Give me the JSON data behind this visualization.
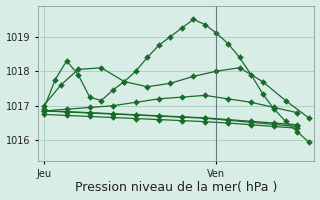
{
  "background_color": "#d8ede5",
  "grid_color": "#a8ccbc",
  "line_color": "#1a6b2a",
  "xlabel": "Pression niveau de la mer( hPa )",
  "xlabel_fontsize": 9,
  "xtick_labels": [
    "Jeu",
    "Ven"
  ],
  "xtick_positions": [
    0,
    30
  ],
  "ytick_values": [
    1016,
    1017,
    1018,
    1019
  ],
  "ylim": [
    1015.4,
    1019.9
  ],
  "xlim": [
    -1,
    47
  ],
  "ven_x": 30,
  "lines": [
    {
      "x": [
        0,
        2,
        4,
        6,
        8,
        10,
        12,
        14,
        16,
        18,
        20,
        22,
        24,
        26,
        28,
        30,
        32,
        34,
        36,
        38,
        40,
        42,
        44,
        46
      ],
      "y": [
        1016.9,
        1017.75,
        1018.3,
        1017.9,
        1017.25,
        1017.15,
        1017.45,
        1017.7,
        1018.0,
        1018.4,
        1018.75,
        1019.0,
        1019.25,
        1019.5,
        1019.35,
        1019.1,
        1018.8,
        1018.4,
        1017.9,
        1017.35,
        1016.9,
        1016.55,
        1016.25,
        1015.95
      ]
    },
    {
      "x": [
        0,
        3,
        6,
        10,
        14,
        18,
        22,
        26,
        30,
        34,
        38,
        42,
        46
      ],
      "y": [
        1017.0,
        1017.6,
        1018.05,
        1018.1,
        1017.7,
        1017.55,
        1017.65,
        1017.85,
        1018.0,
        1018.1,
        1017.7,
        1017.15,
        1016.65
      ]
    },
    {
      "x": [
        0,
        4,
        8,
        12,
        16,
        20,
        24,
        28,
        32,
        36,
        40,
        44
      ],
      "y": [
        1016.85,
        1016.9,
        1016.95,
        1017.0,
        1017.1,
        1017.2,
        1017.25,
        1017.3,
        1017.2,
        1017.1,
        1016.95,
        1016.8
      ]
    },
    {
      "x": [
        0,
        4,
        8,
        12,
        16,
        20,
        24,
        28,
        32,
        36,
        40,
        44
      ],
      "y": [
        1016.85,
        1016.83,
        1016.8,
        1016.77,
        1016.74,
        1016.71,
        1016.68,
        1016.65,
        1016.6,
        1016.55,
        1016.5,
        1016.45
      ]
    },
    {
      "x": [
        0,
        4,
        8,
        12,
        16,
        20,
        24,
        28,
        32,
        36,
        40,
        44
      ],
      "y": [
        1016.75,
        1016.72,
        1016.69,
        1016.66,
        1016.63,
        1016.6,
        1016.57,
        1016.54,
        1016.5,
        1016.45,
        1016.4,
        1016.35
      ]
    },
    {
      "x": [
        0,
        4,
        8,
        12,
        16,
        20,
        24,
        28,
        32,
        36,
        40,
        44
      ],
      "y": [
        1016.85,
        1016.82,
        1016.79,
        1016.76,
        1016.73,
        1016.7,
        1016.67,
        1016.64,
        1016.58,
        1016.52,
        1016.46,
        1016.4
      ]
    }
  ]
}
